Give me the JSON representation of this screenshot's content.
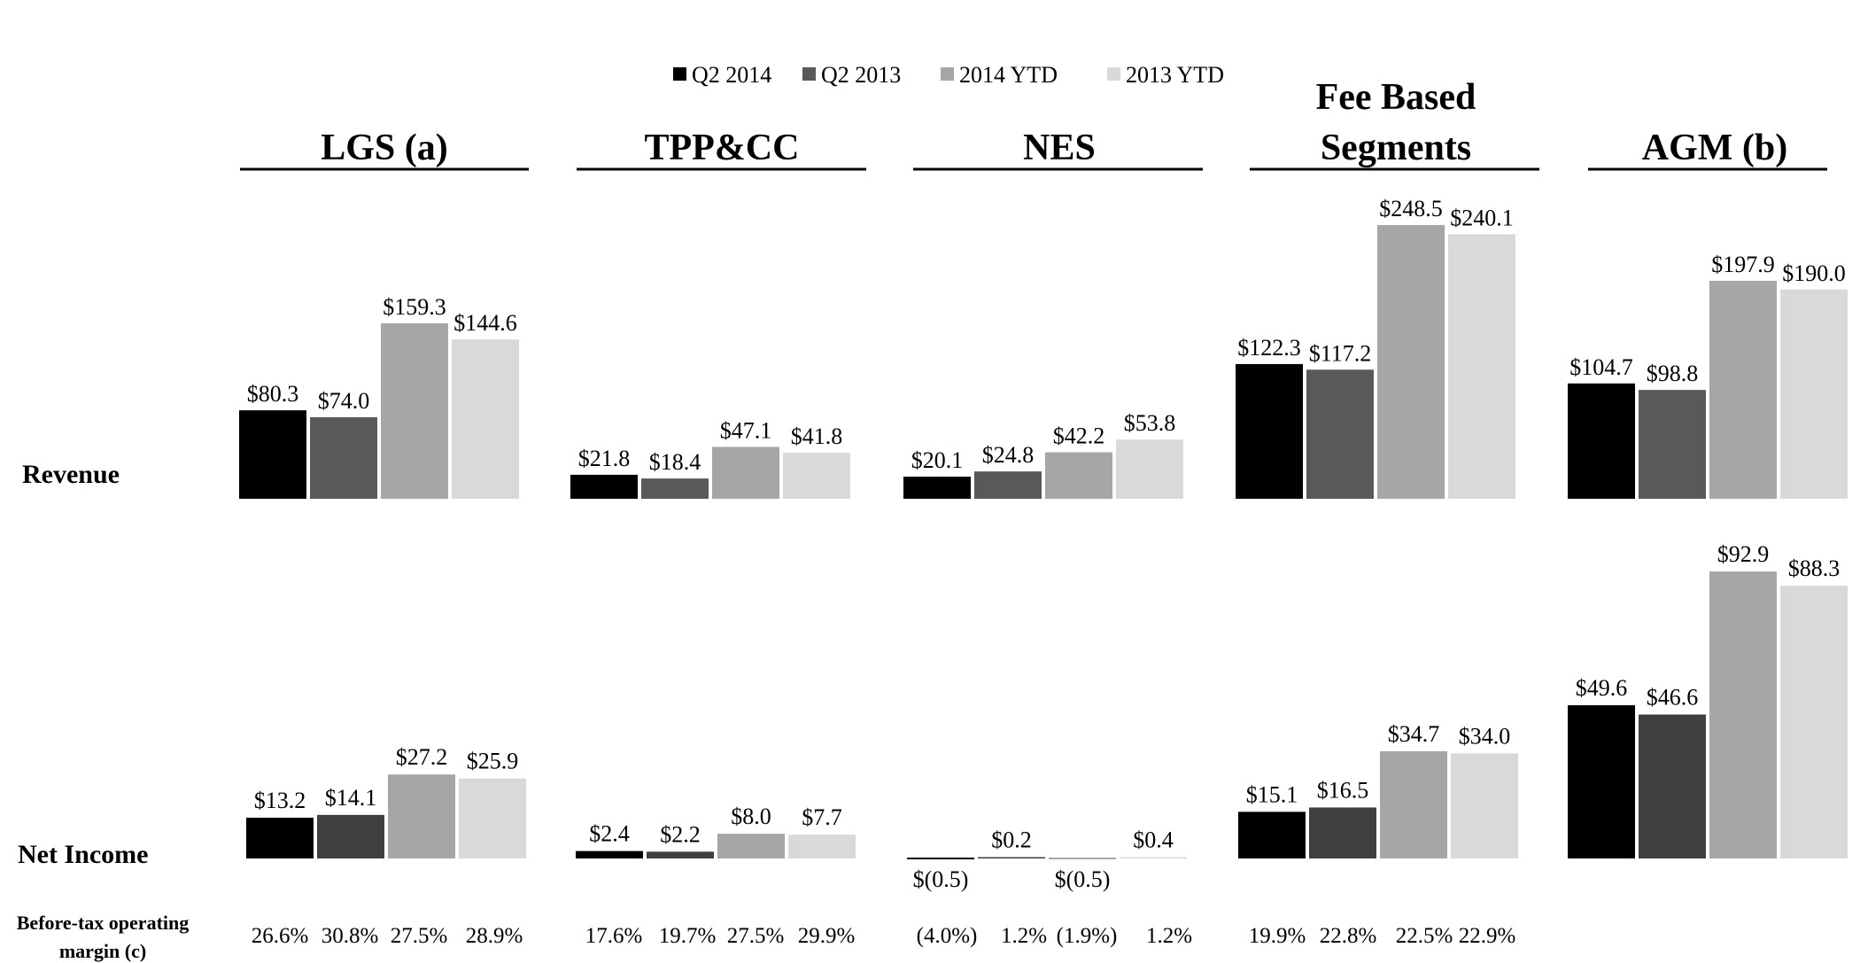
{
  "chart_data": {
    "type": "bar",
    "legend": [
      "Q2 2014",
      "Q2 2013",
      "2014 YTD",
      "2013 YTD"
    ],
    "series_colors": [
      "#000000",
      "#595959",
      "#a6a6a6",
      "#d9d9d9"
    ],
    "net_income_colors": [
      "#000000",
      "#404040",
      "#a6a6a6",
      "#d9d9d9"
    ],
    "row_labels": {
      "revenue": "Revenue",
      "net_income": "Net Income",
      "margin": "Before-tax operating margin (c)",
      "margin_line1": "Before-tax operating",
      "margin_line2": "margin (c)"
    },
    "segments": [
      {
        "name": "LGS (a)",
        "title_lines": [
          "LGS (a)"
        ],
        "revenue": [
          80.3,
          74.0,
          159.3,
          144.6
        ],
        "revenue_labels": [
          "$80.3",
          "$74.0",
          "$159.3",
          "$144.6"
        ],
        "net_income": [
          13.2,
          14.1,
          27.2,
          25.9
        ],
        "net_income_labels": [
          "$13.2",
          "$14.1",
          "$27.2",
          "$25.9"
        ],
        "margin": [
          "26.6%",
          "30.8%",
          "27.5%",
          "28.9%"
        ]
      },
      {
        "name": "TPP&CC",
        "title_lines": [
          "TPP&CC"
        ],
        "revenue": [
          21.8,
          18.4,
          47.1,
          41.8
        ],
        "revenue_labels": [
          "$21.8",
          "$18.4",
          "$47.1",
          "$41.8"
        ],
        "net_income": [
          2.4,
          2.2,
          8.0,
          7.7
        ],
        "net_income_labels": [
          "$2.4",
          "$2.2",
          "$8.0",
          "$7.7"
        ],
        "margin": [
          "17.6%",
          "19.7%",
          "27.5%",
          "29.9%"
        ]
      },
      {
        "name": "NES",
        "title_lines": [
          "NES"
        ],
        "revenue": [
          20.1,
          24.8,
          42.2,
          53.8
        ],
        "revenue_labels": [
          "$20.1",
          "$24.8",
          "$42.2",
          "$53.8"
        ],
        "net_income": [
          -0.5,
          0.2,
          -0.5,
          0.4
        ],
        "net_income_labels": [
          "$(0.5)",
          "$0.2",
          "$(0.5)",
          "$0.4"
        ],
        "margin": [
          "(4.0%)",
          "1.2%",
          "(1.9%)",
          "1.2%"
        ]
      },
      {
        "name": "Fee Based Segments",
        "title_lines": [
          "Fee Based",
          "Segments"
        ],
        "revenue": [
          122.3,
          117.2,
          248.5,
          240.1
        ],
        "revenue_labels": [
          "$122.3",
          "$117.2",
          "$248.5",
          "$240.1"
        ],
        "net_income": [
          15.1,
          16.5,
          34.7,
          34.0
        ],
        "net_income_labels": [
          "$15.1",
          "$16.5",
          "$34.7",
          "$34.0"
        ],
        "margin": [
          "19.9%",
          "22.8%",
          "22.5%",
          "22.9%"
        ]
      },
      {
        "name": "AGM (b)",
        "title_lines": [
          "AGM (b)"
        ],
        "revenue": [
          104.7,
          98.8,
          197.9,
          190.0
        ],
        "revenue_labels": [
          "$104.7",
          "$98.8",
          "$197.9",
          "$190.0"
        ],
        "net_income": [
          49.6,
          46.6,
          92.9,
          88.3
        ],
        "net_income_labels": [
          "$49.6",
          "$46.6",
          "$92.9",
          "$88.3"
        ],
        "margin": []
      }
    ]
  }
}
